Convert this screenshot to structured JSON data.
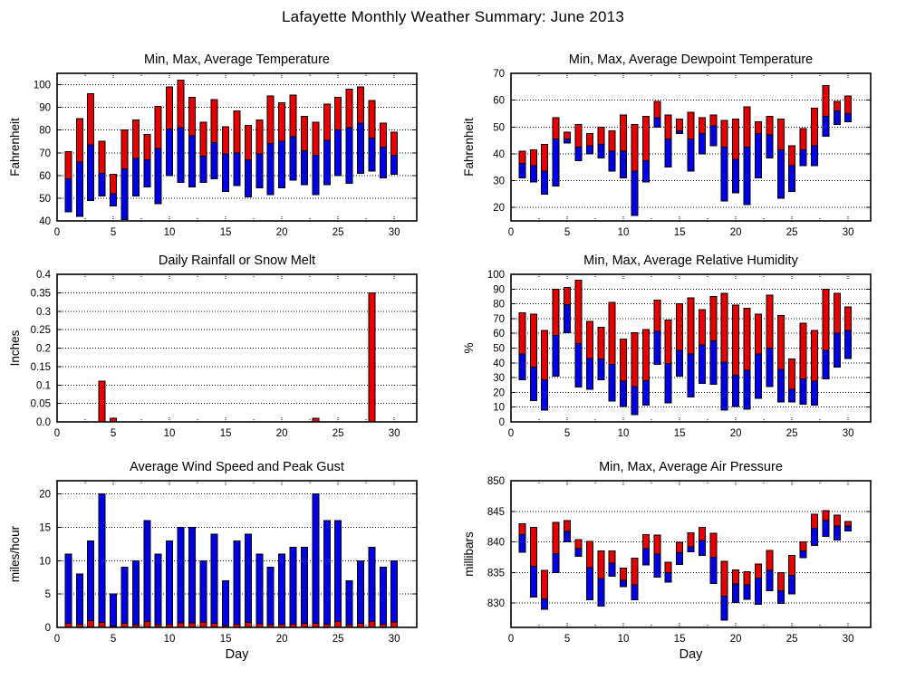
{
  "title": "Lafayette Monthly Weather Summary: June 2013",
  "colors": {
    "blue_bar": "#0000e6",
    "red_bar": "#e60000",
    "outline": "#000000"
  },
  "x_axis": {
    "label": "Day",
    "min": 0,
    "max": 32,
    "ticks": [
      0,
      5,
      10,
      15,
      20,
      25,
      30
    ]
  },
  "days": [
    1,
    2,
    3,
    4,
    5,
    6,
    7,
    8,
    9,
    10,
    11,
    12,
    13,
    14,
    15,
    16,
    17,
    18,
    19,
    20,
    21,
    22,
    23,
    24,
    25,
    26,
    27,
    28,
    29,
    30
  ],
  "chart_data": [
    {
      "id": "temperature",
      "type": "bar",
      "bar_mode": "minmax",
      "title": "Min, Max, Average Temperature",
      "ylabel": "Fahrenheit",
      "ylim": [
        40,
        105
      ],
      "yticks": [
        40,
        50,
        60,
        70,
        80,
        90,
        100
      ],
      "grid": true,
      "show_xlabel": false,
      "series": [
        {
          "name": "min",
          "values": [
            44,
            42,
            49,
            51,
            46.5,
            40.5,
            51,
            55,
            47.5,
            60,
            57,
            55,
            57,
            58.5,
            53,
            55.5,
            50.5,
            54.5,
            51.5,
            54.5,
            58,
            56,
            51.5,
            56,
            60,
            56.5,
            61,
            62,
            59,
            60.5
          ]
        },
        {
          "name": "avg",
          "values": [
            58.5,
            66,
            73.5,
            61,
            52,
            63,
            67.5,
            67,
            72,
            80.5,
            81,
            77.5,
            68.5,
            74.5,
            69.5,
            70,
            67,
            69.5,
            74,
            75,
            77,
            71,
            69,
            75.5,
            80,
            81,
            83,
            76.5,
            72.5,
            69
          ]
        },
        {
          "name": "max",
          "values": [
            70.5,
            85,
            96,
            75,
            60.5,
            80,
            84.5,
            78,
            90.5,
            99,
            102,
            94.5,
            83.5,
            93.5,
            81.5,
            88.5,
            82,
            84.5,
            95,
            92,
            95.5,
            86,
            83.5,
            91.5,
            94.5,
            98,
            99,
            93,
            83,
            79
          ]
        }
      ]
    },
    {
      "id": "dewpoint",
      "type": "bar",
      "bar_mode": "minmax",
      "title": "Min, Max, Average Dewpoint Temperature",
      "ylabel": "Fahrenheit",
      "ylim": [
        15,
        70
      ],
      "yticks": [
        20,
        30,
        40,
        50,
        60,
        70
      ],
      "grid": true,
      "show_xlabel": false,
      "series": [
        {
          "name": "min",
          "values": [
            31,
            29.5,
            25,
            28,
            44,
            37.5,
            40,
            38.5,
            33.5,
            31,
            17,
            29.5,
            50,
            35,
            47.5,
            33.5,
            40,
            43,
            22.5,
            25.5,
            21,
            31,
            38.5,
            23.5,
            26,
            35.5,
            35.5,
            46.5,
            51,
            52
          ]
        },
        {
          "name": "avg",
          "values": [
            36.5,
            35.5,
            33.5,
            45.5,
            45.5,
            42.5,
            43,
            43.5,
            41,
            41,
            33.5,
            37.5,
            53.5,
            45.5,
            48.5,
            45.5,
            47.5,
            50.5,
            42.5,
            38,
            42.5,
            47.5,
            47,
            41.5,
            35.5,
            41.5,
            43,
            54,
            56,
            55
          ]
        },
        {
          "name": "max",
          "values": [
            41,
            41.5,
            43.5,
            53.5,
            48,
            51,
            47.5,
            50,
            48.5,
            54.5,
            51,
            54,
            59.5,
            54.5,
            53,
            55.5,
            53.5,
            54.5,
            52.5,
            53,
            57.5,
            52,
            54,
            53,
            43,
            49.5,
            57,
            65.5,
            59.5,
            61.5
          ]
        }
      ]
    },
    {
      "id": "rainfall",
      "type": "bar",
      "bar_mode": "single",
      "title": "Daily Rainfall or Snow Melt",
      "ylabel": "Inches",
      "ylim": [
        0,
        0.4
      ],
      "yticks": [
        0,
        0.05,
        0.1,
        0.15,
        0.2,
        0.25,
        0.3,
        0.35,
        0.4
      ],
      "ytick_labels": [
        "0.0",
        "0.05",
        "0.1",
        "0.15",
        "0.2",
        "0.25",
        "0.3",
        "0.35",
        "0.4"
      ],
      "grid": true,
      "show_xlabel": false,
      "series": [
        {
          "name": "amount",
          "values": [
            0,
            0,
            0,
            0.11,
            0.01,
            0,
            0,
            0,
            0,
            0,
            0,
            0,
            0,
            0,
            0,
            0,
            0,
            0,
            0,
            0,
            0,
            0,
            0.01,
            0,
            0,
            0,
            0,
            0.35,
            0,
            0
          ]
        }
      ]
    },
    {
      "id": "humidity",
      "type": "bar",
      "bar_mode": "minmax",
      "title": "Min, Max, Average Relative Humidity",
      "ylabel": "%",
      "ylim": [
        0,
        100
      ],
      "yticks": [
        0,
        10,
        20,
        30,
        40,
        50,
        60,
        70,
        80,
        90,
        100
      ],
      "grid": true,
      "show_xlabel": false,
      "series": [
        {
          "name": "min",
          "values": [
            28.5,
            14.5,
            8,
            31,
            60.5,
            23.5,
            22,
            28.5,
            14,
            10.5,
            5,
            11.5,
            39,
            13,
            31,
            17,
            26,
            25.5,
            8,
            10.5,
            8.5,
            16,
            24,
            13.5,
            13.5,
            12,
            11.5,
            29,
            37,
            43
          ]
        },
        {
          "name": "avg",
          "values": [
            46,
            37,
            28.5,
            58.5,
            79.5,
            53,
            43,
            42.5,
            39,
            27.5,
            24,
            28,
            61.5,
            39.5,
            48.5,
            46,
            52,
            55,
            40.5,
            31.5,
            35,
            46,
            50,
            35.5,
            22,
            29,
            27.5,
            48.5,
            60,
            62
          ]
        },
        {
          "name": "max",
          "values": [
            74,
            73,
            62,
            90,
            91,
            96,
            68,
            64,
            81,
            56,
            60.5,
            62.5,
            82.5,
            69,
            80,
            84,
            76,
            85,
            87,
            79,
            77,
            73,
            86,
            72,
            42.5,
            67,
            62,
            90,
            87,
            78
          ]
        }
      ]
    },
    {
      "id": "wind",
      "type": "bar",
      "bar_mode": "overlay",
      "title": "Average Wind Speed and Peak Gust",
      "ylabel": "miles/hour",
      "ylim": [
        0,
        22
      ],
      "yticks": [
        0,
        5,
        10,
        15,
        20
      ],
      "grid": true,
      "show_xlabel": true,
      "series": [
        {
          "name": "average",
          "values": [
            0.6,
            0.5,
            1,
            0.75,
            0.2,
            0.6,
            0.4,
            0.9,
            0.4,
            0.5,
            0.7,
            0.7,
            0.8,
            0.6,
            0.3,
            0.45,
            0.75,
            0.55,
            0.4,
            0.45,
            0.5,
            0.6,
            0.6,
            0.45,
            0.9,
            0.4,
            0.6,
            0.9,
            0.5,
            0.8
          ]
        },
        {
          "name": "peak_gust",
          "values": [
            11,
            8,
            13,
            20,
            5,
            9,
            10,
            16,
            11,
            13,
            15,
            15,
            10,
            14,
            7,
            13,
            14,
            11,
            9,
            11,
            12,
            12,
            20,
            16,
            16,
            7,
            10,
            12,
            9,
            10
          ]
        }
      ]
    },
    {
      "id": "pressure",
      "type": "bar",
      "bar_mode": "minmax",
      "title": "Min, Max, Average Air Pressure",
      "ylabel": "millibars",
      "ylim": [
        826,
        850
      ],
      "yticks": [
        830,
        835,
        840,
        845,
        850
      ],
      "grid": true,
      "show_xlabel": true,
      "series": [
        {
          "name": "min",
          "values": [
            838.3,
            831,
            829,
            835,
            840,
            837.6,
            830.5,
            829.5,
            834.4,
            832.7,
            830.5,
            836.2,
            834.2,
            833.4,
            836.3,
            838.4,
            837.8,
            833.2,
            827.2,
            830.1,
            830.6,
            829.8,
            832,
            829.9,
            831.5,
            837.4,
            839.4,
            840.9,
            840.3,
            841.8
          ]
        },
        {
          "name": "avg",
          "values": [
            841.2,
            836,
            830.7,
            838.1,
            841.7,
            838.9,
            835.8,
            834,
            836.5,
            833.7,
            833,
            838.9,
            838,
            835,
            838.2,
            839.2,
            840.2,
            837.5,
            831.1,
            833.1,
            833,
            834.1,
            835.3,
            832,
            834.5,
            838.5,
            842.2,
            843.5,
            842.6,
            842.6
          ]
        },
        {
          "name": "max",
          "values": [
            843,
            842.4,
            835.3,
            843.2,
            843.5,
            840.4,
            840.1,
            838.5,
            838.5,
            835.7,
            837.3,
            841.2,
            841.1,
            836.7,
            839.9,
            841.5,
            842.4,
            841.4,
            836.8,
            835.4,
            835.1,
            836.4,
            838.6,
            835,
            837.8,
            840,
            844.5,
            845.1,
            844.4,
            843.3
          ]
        }
      ]
    }
  ]
}
